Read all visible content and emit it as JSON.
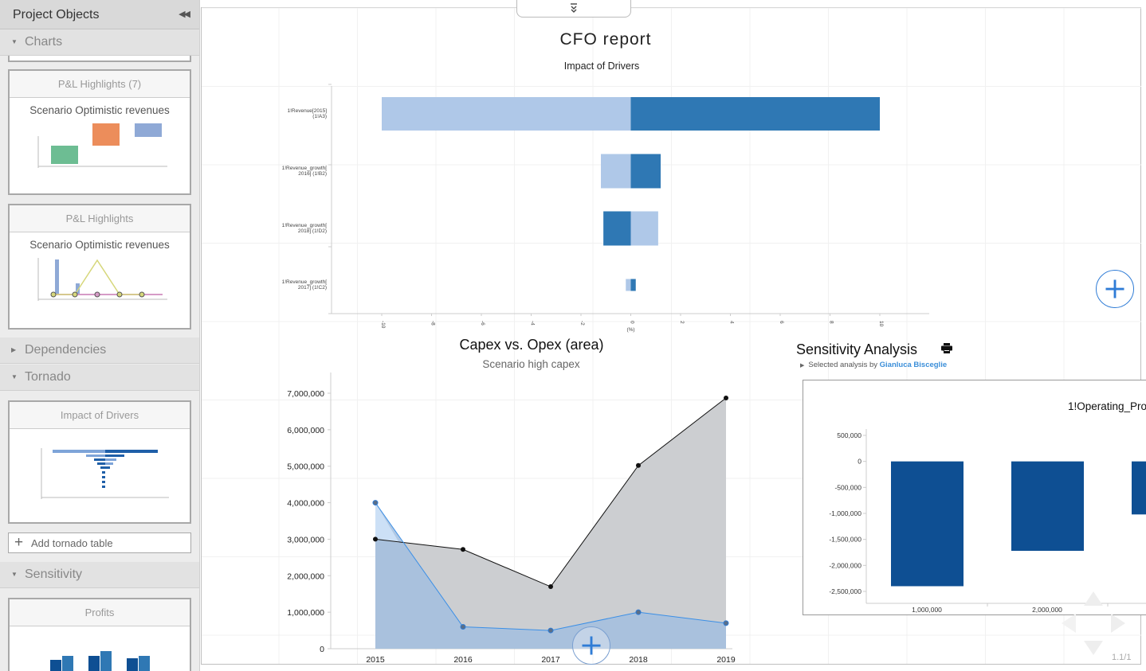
{
  "sidebar": {
    "title": "Project Objects",
    "collapse_icon": "double-chevron-left-icon",
    "sections": {
      "charts": "Charts",
      "dependencies": "Dependencies",
      "tornado": "Tornado",
      "sensitivity": "Sensitivity"
    },
    "cards": {
      "pl_highlights_7": {
        "title": "P&L Highlights (7)",
        "subtitle": "Scenario Optimistic revenues"
      },
      "pl_highlights": {
        "title": "P&L Highlights",
        "subtitle": "Scenario Optimistic revenues"
      },
      "impact_drivers": {
        "title": "Impact of Drivers"
      },
      "profits": {
        "title": "Profits"
      }
    },
    "add_tornado_label": "Add tornado table"
  },
  "canvas": {
    "title": "CFO report",
    "page_indicator": "1.1/1"
  },
  "colors": {
    "dark_blue": "#2f78b4",
    "light_blue": "#afc8e8",
    "navy": "#0e4f93",
    "accent_blue": "#2f7cd6",
    "author_link": "#3c8fd9",
    "capex_fill": "#c9cbcf",
    "opex_fill": "#a2bedf"
  },
  "chart_data": [
    {
      "type": "bar",
      "subtype": "tornado",
      "subtitle": "Impact of Drivers",
      "xlabel": "(%)",
      "xlim": [
        -10,
        10
      ],
      "xticks": [
        "-10",
        "-8",
        "-6",
        "-4",
        "-2",
        "0",
        "2",
        "4",
        "6",
        "8",
        "10"
      ],
      "categories": [
        "1!Revenue[2015] (1!A3)",
        "1!Revenue_growth[ 2016] (1!B2)",
        "1!Revenue_growth[ 2018] (1!D2)",
        "1!Revenue_growth[ 2017] (1!C2)"
      ],
      "category_lines": [
        [
          "1!Revenue[2015]",
          "(1!A3)"
        ],
        [
          "1!Revenue_growth[",
          "2016] (1!B2)"
        ],
        [
          "1!Revenue_growth[",
          "2018] (1!D2)"
        ],
        [
          "1!Revenue_growth[",
          "2017] (1!C2)"
        ]
      ],
      "series": [
        {
          "color": "light",
          "ranges": [
            [
              -10,
              0
            ],
            [
              -1.2,
              0
            ],
            [
              0,
              1.1
            ],
            [
              -0.2,
              0
            ]
          ]
        },
        {
          "color": "dark",
          "ranges": [
            [
              0,
              10
            ],
            [
              0,
              1.2
            ],
            [
              -1.1,
              0
            ],
            [
              0,
              0.2
            ]
          ]
        }
      ],
      "grid": true
    },
    {
      "type": "area",
      "title": "Capex vs. Opex (area)",
      "subtitle": "Scenario high capex",
      "x": [
        "2015",
        "2016",
        "2017",
        "2018",
        "2019"
      ],
      "ylim": [
        0,
        7000000
      ],
      "yticks": [
        "0",
        "1,000,000",
        "2,000,000",
        "3,000,000",
        "4,000,000",
        "5,000,000",
        "6,000,000",
        "7,000,000"
      ],
      "series": [
        {
          "values": [
            3000000,
            2720000,
            1700000,
            5020000,
            6870000
          ]
        },
        {
          "values": [
            4000000,
            600000,
            500000,
            1000000,
            700000
          ]
        }
      ],
      "grid": true
    },
    {
      "type": "bar",
      "title": "Sensitivity Analysis",
      "selected_analysis_prefix": "Selected analysis by",
      "author": "Gianluca Bisceglie",
      "chart_title": "1!Operating_Pro",
      "categories": [
        "1,000,000",
        "2,000,000",
        ""
      ],
      "values": [
        -2400000,
        -1720000,
        -1020000
      ],
      "ylim": [
        -2750000,
        650000
      ],
      "yticks": [
        "500,000",
        "0",
        "-500,000",
        "-1,000,000",
        "-1,500,000",
        "-2,000,000",
        "-2,500,000"
      ],
      "ytick_values": [
        500000,
        0,
        -500000,
        -1000000,
        -1500000,
        -2000000,
        -2500000
      ]
    }
  ],
  "icons": {
    "top_toggle": "double-chevron-down-icon",
    "add_chart": "plus-icon",
    "print": "printer-icon",
    "navigation": "nav-arrows-icon"
  }
}
